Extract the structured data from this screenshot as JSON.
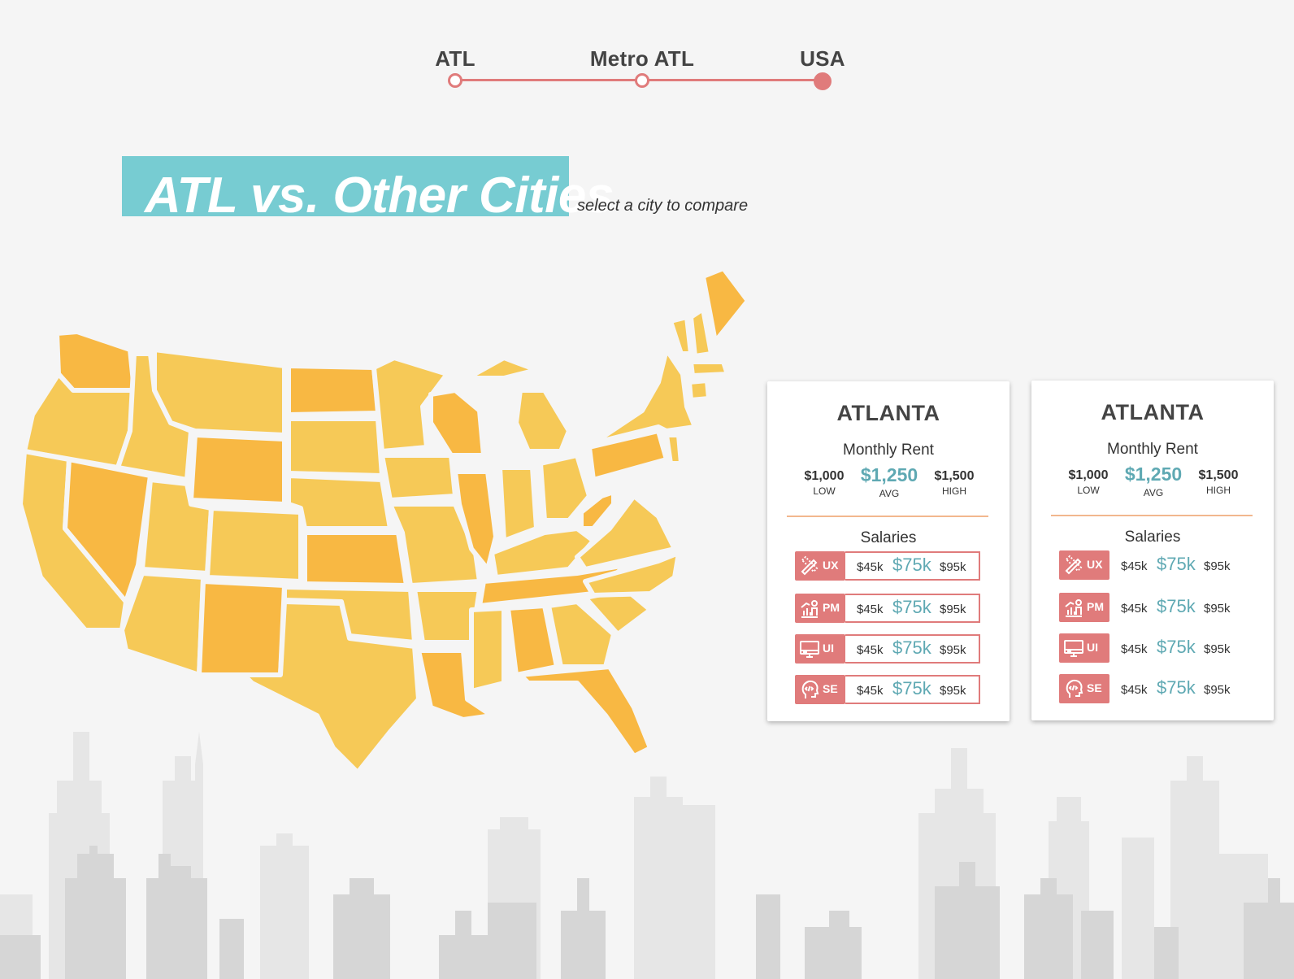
{
  "scope_selector": {
    "options": [
      {
        "label": "ATL",
        "active": false
      },
      {
        "label": "Metro ATL",
        "active": false
      },
      {
        "label": "USA",
        "active": true
      }
    ]
  },
  "heading": {
    "title": "ATL vs. Other Cities",
    "subtitle": "select a city to compare"
  },
  "colors": {
    "accent": "#e07b7b",
    "teal": "#77ccd2",
    "value_teal": "#5fa9b3",
    "state_yellow": "#f6c957",
    "state_orange": "#f8b843",
    "skyline": "#dedede"
  },
  "cards": [
    {
      "city": "ATLANTA",
      "rent": {
        "title": "Monthly Rent",
        "low": "$1,000",
        "low_label": "LOW",
        "avg": "$1,250",
        "avg_label": "AVG",
        "high": "$1,500",
        "high_label": "HIGH"
      },
      "salaries_title": "Salaries",
      "salaries": [
        {
          "code": "UX",
          "icon": "pencil-ruler-icon",
          "low": "$45k",
          "avg": "$75k",
          "high": "$95k"
        },
        {
          "code": "PM",
          "icon": "growth-chart-person-icon",
          "low": "$45k",
          "avg": "$75k",
          "high": "$95k"
        },
        {
          "code": "UI",
          "icon": "monitor-icon",
          "low": "$45k",
          "avg": "$75k",
          "high": "$95k"
        },
        {
          "code": "SE",
          "icon": "code-head-icon",
          "low": "$45k",
          "avg": "$75k",
          "high": "$95k"
        }
      ]
    },
    {
      "city": "ATLANTA",
      "rent": {
        "title": "Monthly Rent",
        "low": "$1,000",
        "low_label": "LOW",
        "avg": "$1,250",
        "avg_label": "AVG",
        "high": "$1,500",
        "high_label": "HIGH"
      },
      "salaries_title": "Salaries",
      "salaries": [
        {
          "code": "UX",
          "icon": "pencil-ruler-icon",
          "low": "$45k",
          "avg": "$75k",
          "high": "$95k"
        },
        {
          "code": "PM",
          "icon": "growth-chart-person-icon",
          "low": "$45k",
          "avg": "$75k",
          "high": "$95k"
        },
        {
          "code": "UI",
          "icon": "monitor-icon",
          "low": "$45k",
          "avg": "$75k",
          "high": "$95k"
        },
        {
          "code": "SE",
          "icon": "code-head-icon",
          "low": "$45k",
          "avg": "$75k",
          "high": "$95k"
        }
      ]
    }
  ]
}
